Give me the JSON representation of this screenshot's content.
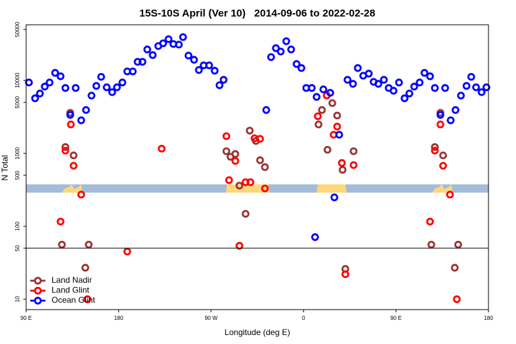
{
  "chart_data": {
    "type": "scatter",
    "title": "15S-10S April (Ver 10)   2014-09-06 to 2022-02-28",
    "x_label": "Longitude (deg E)",
    "y_label": "N Total",
    "xlim": [
      90,
      540
    ],
    "xticks": [
      {
        "value": 90,
        "label": "90 E"
      },
      180,
      {
        "value": 270,
        "label": "90 W"
      },
      {
        "value": 360,
        "label": "0"
      },
      {
        "value": 450,
        "label": "90 E"
      },
      {
        "value": 540,
        "label": "180"
      }
    ],
    "ylim": [
      7.2,
      58000
    ],
    "yticks": [
      10,
      50,
      100,
      500,
      1000,
      5000,
      10000,
      50000
    ],
    "y_log": true,
    "hline": 50,
    "legend": "bottom-left",
    "series": [
      {
        "name": "Land Nadir",
        "color": "#993333",
        "x": [
          132.9,
          128.2,
          136.2,
          124.8,
          147.6,
          150.9,
          284.9,
          288.9,
          293.6,
          297.6,
          303.6,
          307.6,
          313.6,
          317.7,
          322.4,
          377.9,
          374.6,
          392.7,
          388.0,
          383.3,
          398.0,
          408.7,
          400.7,
          493.2,
          487.8,
          495.8,
          484.4,
          507.2,
          510.5
        ],
        "values": [
          3600,
          1220,
          937,
          56,
          27,
          56,
          1070,
          898,
          979,
          361,
          148,
          2050,
          1480,
          805,
          648,
          3930,
          2490,
          3300,
          4890,
          1120,
          594,
          1070,
          26,
          3600,
          1220,
          937,
          56,
          27,
          56
        ]
      },
      {
        "name": "Land Glint",
        "color": "#ff0000",
        "x": [
          128.2,
          133.5,
          136.2,
          123.5,
          143.6,
          149.6,
          188.4,
          221.9,
          284.9,
          287.5,
          293.6,
          297.6,
          303.6,
          308.3,
          312.3,
          317.7,
          322.4,
          373.9,
          382.6,
          392.7,
          389.3,
          397.3,
          408.7,
          400.7,
          487.8,
          493.2,
          495.8,
          483.1,
          502.5,
          509.2
        ],
        "values": [
          1090,
          2490,
          676,
          116,
          272,
          10,
          45,
          1160,
          1720,
          429,
          787,
          54,
          402,
          402,
          1610,
          1580,
          330,
          3230,
          6200,
          2330,
          1800,
          738,
          691,
          22,
          1090,
          2490,
          676,
          116,
          272,
          10
        ]
      },
      {
        "name": "Ocean Glint",
        "color": "#0000ff",
        "x": [
          92.7,
          98.7,
          103.4,
          108.1,
          112.8,
          118.2,
          123.5,
          128.2,
          132.9,
          138.2,
          143.6,
          148.3,
          153.6,
          158.3,
          163.0,
          168.4,
          173.7,
          178.4,
          183.7,
          188.4,
          193.8,
          198.5,
          203.2,
          207.9,
          213.2,
          218.6,
          223.3,
          228.6,
          233.3,
          238.7,
          242.7,
          248.0,
          253.4,
          258.1,
          262.8,
          268.1,
          273.5,
          278.2,
          282.2,
          323.7,
          328.4,
          333.1,
          337.8,
          343.2,
          347.9,
          353.2,
          357.9,
          362.6,
          368.0,
          372.7,
          379.3,
          386.0,
          394.7,
          390.0,
          402.8,
          408.1,
          412.8,
          418.1,
          423.5,
          428.2,
          432.8,
          438.2,
          442.9,
          447.6,
          452.9,
          458.3,
          463.0,
          467.7,
          473.0,
          477.7,
          483.1,
          487.8,
          493.2,
          497.8,
          503.2,
          507.9,
          513.2,
          518.6,
          523.2,
          527.9,
          533.3,
          538.0,
          371.2
        ],
        "values": [
          9370,
          5690,
          6620,
          8230,
          9370,
          12700,
          11400,
          7880,
          3370,
          7880,
          2840,
          3930,
          6200,
          8410,
          11200,
          8050,
          6910,
          8050,
          9370,
          13300,
          13300,
          18000,
          18000,
          26600,
          22300,
          29600,
          32300,
          36800,
          31600,
          31000,
          39300,
          21900,
          19200,
          13900,
          16100,
          16100,
          13600,
          8600,
          10200,
          3930,
          20900,
          27700,
          24900,
          34500,
          26600,
          16800,
          14800,
          7880,
          7880,
          5940,
          7540,
          6760,
          1800,
          249,
          10200,
          8980,
          14800,
          11600,
          12400,
          9570,
          8980,
          10200,
          7880,
          7220,
          9370,
          5690,
          6620,
          8230,
          9370,
          12700,
          11400,
          7880,
          3370,
          7880,
          2840,
          3930,
          6200,
          8410,
          11200,
          8050,
          6910,
          8050,
          71
        ]
      }
    ]
  }
}
